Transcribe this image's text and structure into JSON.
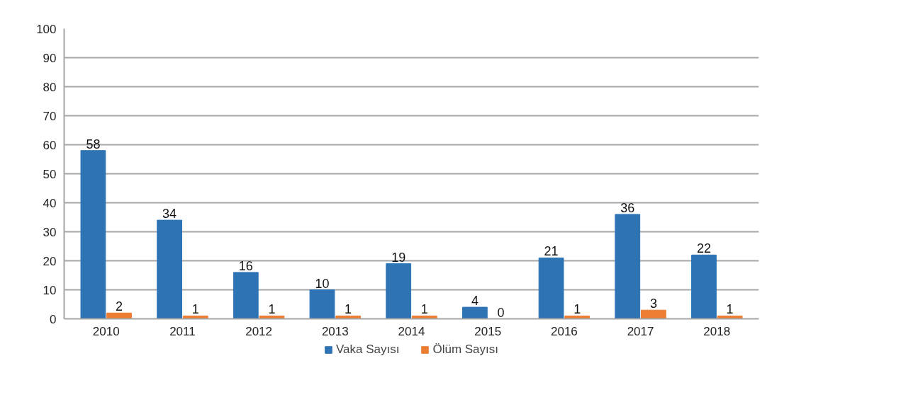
{
  "chart_data": {
    "type": "bar",
    "categories": [
      "2010",
      "2011",
      "2012",
      "2013",
      "2014",
      "2015",
      "2016",
      "2017",
      "2018"
    ],
    "series": [
      {
        "name": "Vaka Sayısı",
        "color": "#2e74b5",
        "values": [
          58,
          34,
          16,
          10,
          19,
          4,
          21,
          36,
          22
        ]
      },
      {
        "name": "Ölüm Sayısı",
        "color": "#ed7d31",
        "values": [
          2,
          1,
          1,
          1,
          1,
          0,
          1,
          3,
          1
        ]
      }
    ],
    "ylim": [
      0,
      100
    ],
    "yticks": [
      0,
      10,
      20,
      30,
      40,
      50,
      60,
      70,
      80,
      90,
      100
    ],
    "grid": "y",
    "legend": "bottom",
    "data_labels": true
  }
}
